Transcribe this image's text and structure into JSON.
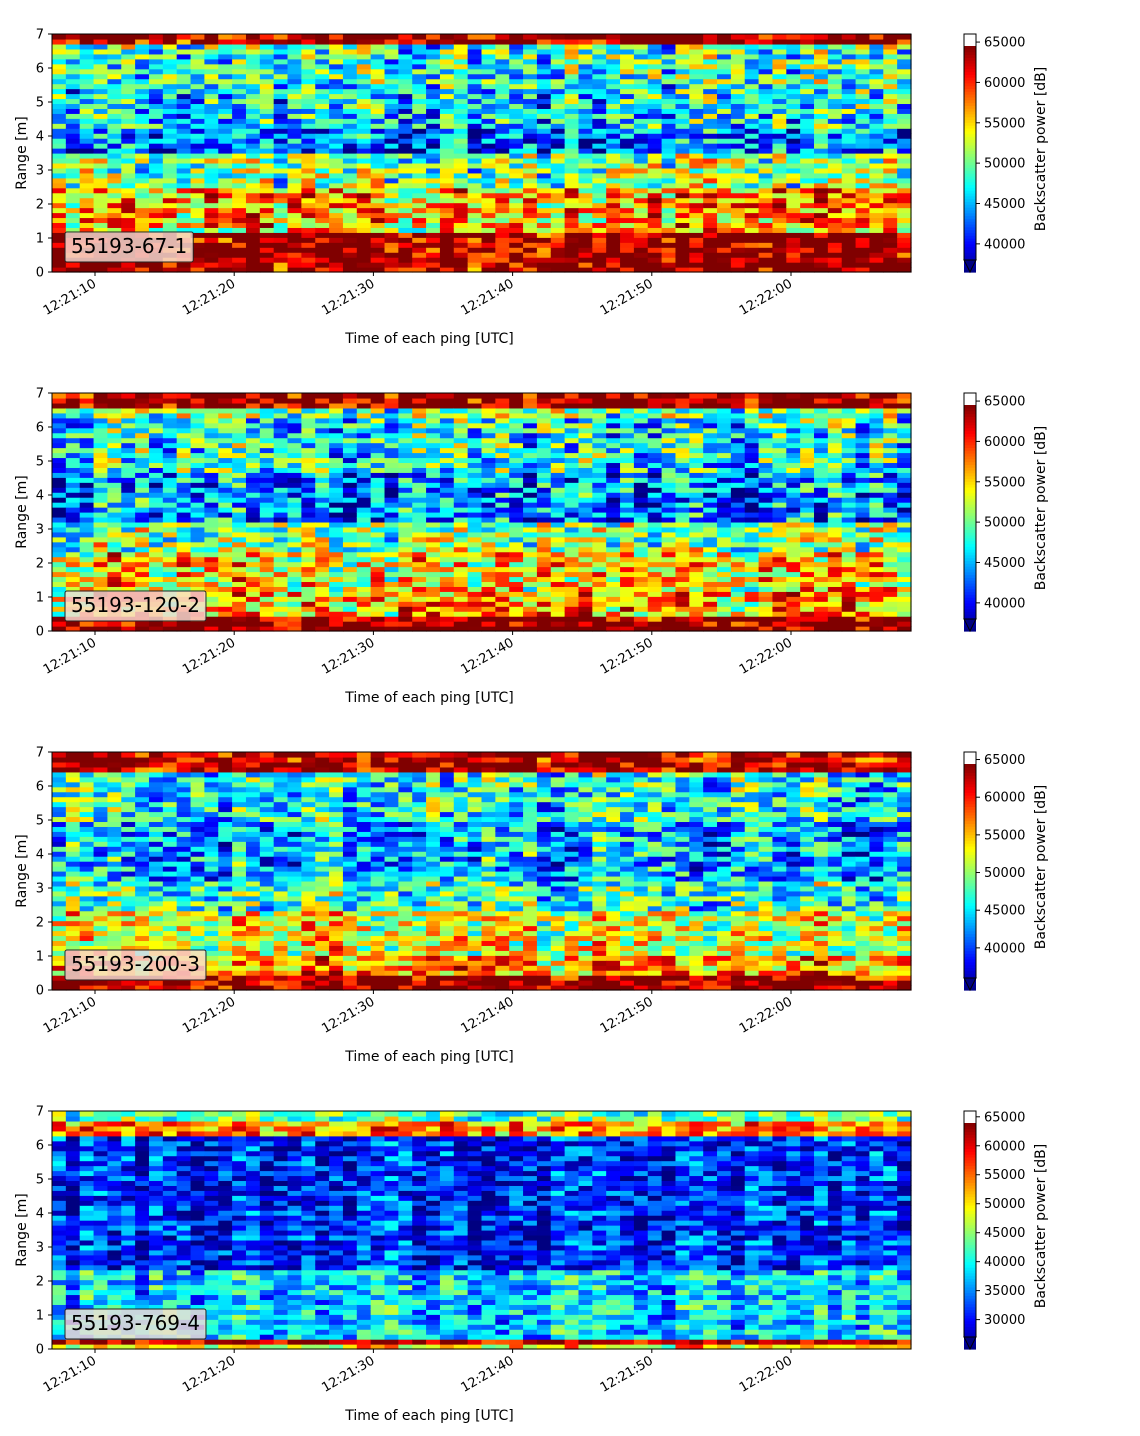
{
  "chart_data": [
    {
      "type": "heatmap",
      "label_box": "55193-67-1",
      "xlabel": "Time of each ping [UTC]",
      "ylabel": "Range [m]",
      "ylim": [
        0,
        7
      ],
      "yticks": [
        0,
        1,
        2,
        3,
        4,
        5,
        6,
        7
      ],
      "xticks": [
        "12:21:10",
        "12:21:20",
        "12:21:30",
        "12:21:40",
        "12:21:50",
        "12:22:00"
      ],
      "colorbar": {
        "label": "Backscatter power [dB]",
        "vmin": 38000,
        "vmax": 66000,
        "ticks": [
          40000,
          45000,
          50000,
          55000,
          60000,
          65000
        ],
        "extend": "min",
        "colormap": "jet"
      },
      "bands": [
        {
          "range": [
            0.2,
            1.1
          ],
          "value": 66000
        },
        {
          "range": [
            1.1,
            1.3
          ],
          "value": 56000
        },
        {
          "range": [
            1.3,
            2.5
          ],
          "value": 58000
        },
        {
          "range": [
            2.5,
            3.5
          ],
          "value": 52000
        },
        {
          "range": [
            3.5,
            4.3
          ],
          "value": 44000
        },
        {
          "range": [
            4.3,
            5.5
          ],
          "value": 48000
        },
        {
          "range": [
            5.5,
            6.7
          ],
          "value": 50000
        },
        {
          "range": [
            6.7,
            7.0
          ],
          "value": 66000
        }
      ]
    },
    {
      "type": "heatmap",
      "label_box": "55193-120-2",
      "xlabel": "Time of each ping [UTC]",
      "ylabel": "Range [m]",
      "ylim": [
        0,
        7
      ],
      "yticks": [
        0,
        1,
        2,
        3,
        4,
        5,
        6,
        7
      ],
      "xticks": [
        "12:21:10",
        "12:21:20",
        "12:21:30",
        "12:21:40",
        "12:21:50",
        "12:22:00"
      ],
      "colorbar": {
        "label": "Backscatter power [dB]",
        "vmin": 38000,
        "vmax": 66000,
        "ticks": [
          40000,
          45000,
          50000,
          55000,
          60000,
          65000
        ],
        "extend": "min",
        "colormap": "jet"
      },
      "bands": [
        {
          "range": [
            0.1,
            0.5
          ],
          "value": 66000
        },
        {
          "range": [
            0.5,
            1.2
          ],
          "value": 58000
        },
        {
          "range": [
            1.2,
            2.4
          ],
          "value": 56000
        },
        {
          "range": [
            2.4,
            3.2
          ],
          "value": 52000
        },
        {
          "range": [
            3.2,
            4.6
          ],
          "value": 45000
        },
        {
          "range": [
            4.6,
            6.2
          ],
          "value": 49000
        },
        {
          "range": [
            6.2,
            6.6
          ],
          "value": 52000
        },
        {
          "range": [
            6.6,
            7.0
          ],
          "value": 66000
        }
      ]
    },
    {
      "type": "heatmap",
      "label_box": "55193-200-3",
      "xlabel": "Time of each ping [UTC]",
      "ylabel": "Range [m]",
      "ylim": [
        0,
        7
      ],
      "yticks": [
        0,
        1,
        2,
        3,
        4,
        5,
        6,
        7
      ],
      "xticks": [
        "12:21:10",
        "12:21:20",
        "12:21:30",
        "12:21:40",
        "12:21:50",
        "12:22:00"
      ],
      "colorbar": {
        "label": "Backscatter power [dB]",
        "vmin": 36000,
        "vmax": 66000,
        "ticks": [
          40000,
          45000,
          50000,
          55000,
          60000,
          65000
        ],
        "extend": "min",
        "colormap": "jet"
      },
      "bands": [
        {
          "range": [
            0.1,
            0.4
          ],
          "value": 66000
        },
        {
          "range": [
            0.4,
            1.0
          ],
          "value": 58000
        },
        {
          "range": [
            1.0,
            2.3
          ],
          "value": 54000
        },
        {
          "range": [
            2.3,
            3.2
          ],
          "value": 49000
        },
        {
          "range": [
            3.2,
            5.0
          ],
          "value": 45000
        },
        {
          "range": [
            5.0,
            6.4
          ],
          "value": 48000
        },
        {
          "range": [
            6.4,
            7.0
          ],
          "value": 65000
        }
      ]
    },
    {
      "type": "heatmap",
      "label_box": "55193-769-4",
      "xlabel": "Time of each ping [UTC]",
      "ylabel": "Range [m]",
      "ylim": [
        0,
        7
      ],
      "yticks": [
        0,
        1,
        2,
        3,
        4,
        5,
        6,
        7
      ],
      "xticks": [
        "12:21:10",
        "12:21:20",
        "12:21:30",
        "12:21:40",
        "12:21:50",
        "12:22:00"
      ],
      "colorbar": {
        "label": "Backscatter power [dB]",
        "vmin": 27000,
        "vmax": 66000,
        "ticks": [
          30000,
          35000,
          40000,
          45000,
          50000,
          55000,
          60000,
          65000
        ],
        "extend": "min",
        "colormap": "jet"
      },
      "bands": [
        {
          "range": [
            0.0,
            0.2
          ],
          "value": 52000
        },
        {
          "range": [
            0.2,
            0.35
          ],
          "value": 65000
        },
        {
          "range": [
            0.35,
            2.4
          ],
          "value": 40000
        },
        {
          "range": [
            2.4,
            6.3
          ],
          "value": 33000
        },
        {
          "range": [
            6.3,
            6.7
          ],
          "value": 56000
        },
        {
          "range": [
            6.7,
            7.0
          ],
          "value": 45000
        }
      ]
    }
  ]
}
